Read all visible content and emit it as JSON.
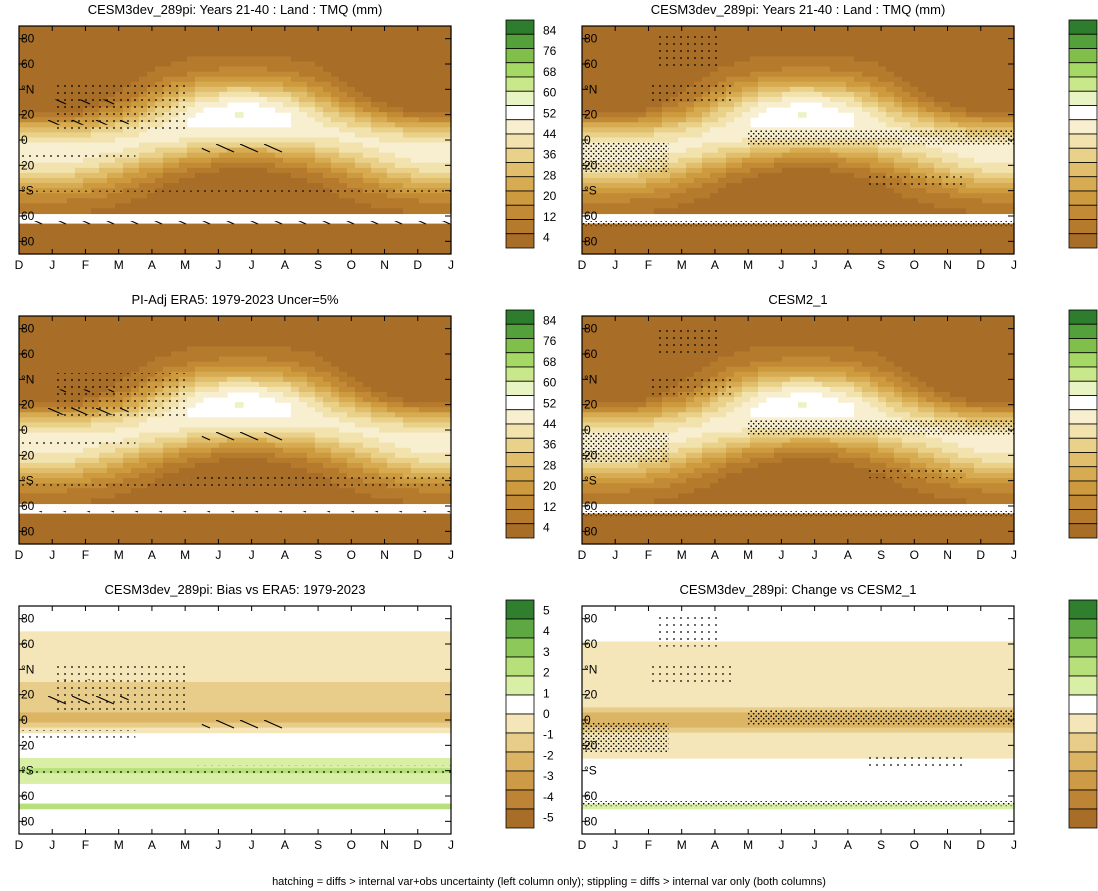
{
  "caption": "hatching = diffs > internal var+obs uncertainty (left column only); stippling = diffs > internal var only (both columns)",
  "months": [
    "D",
    "J",
    "F",
    "M",
    "A",
    "M",
    "J",
    "J",
    "A",
    "S",
    "O",
    "N",
    "D",
    "J"
  ],
  "lat_ticks": [
    "80",
    "60",
    "°N",
    "20",
    "0",
    "20",
    "°S",
    "60",
    "80"
  ],
  "colorbars": {
    "abs": [
      "84",
      "76",
      "68",
      "60",
      "52",
      "44",
      "36",
      "28",
      "20",
      "12",
      "4"
    ],
    "diff": [
      "5",
      "4",
      "3",
      "2",
      "1",
      "0",
      "-1",
      "-2",
      "-3",
      "-4",
      "-5"
    ]
  },
  "colors": {
    "abs_scale": [
      "#a86e28",
      "#b57a2c",
      "#c28a34",
      "#cd9a3e",
      "#d7ab52",
      "#e1be6c",
      "#ead18a",
      "#f2e2ad",
      "#f8efd0",
      "#ffffff",
      "#e9f4c4",
      "#c9e88c",
      "#a6d866",
      "#7fbf4a",
      "#54a03a",
      "#2e7d2e"
    ],
    "diff_scale": [
      "#a86e28",
      "#bd8436",
      "#cd9a48",
      "#dbb464",
      "#e8cd8a",
      "#f4e6b8",
      "#ffffff",
      "#d9efa6",
      "#b7e07a",
      "#8cc85a",
      "#5ea843",
      "#2f7f2e"
    ]
  },
  "chart_data": [
    {
      "type": "heatmap",
      "title": "CESM3dev_289pi: Years 21-40 : Land : TMQ (mm)",
      "ylim": [
        -90,
        90
      ],
      "x": [
        "D",
        "J",
        "F",
        "M",
        "A",
        "M",
        "J",
        "J",
        "A",
        "S",
        "O",
        "N",
        "D",
        "J"
      ],
      "scale": "abs",
      "range": [
        4,
        84
      ]
    },
    {
      "type": "heatmap",
      "title": "CESM3dev_289pi: Years 21-40 : Land : TMQ (mm)",
      "ylim": [
        -90,
        90
      ],
      "x": [
        "D",
        "J",
        "F",
        "M",
        "A",
        "M",
        "J",
        "J",
        "A",
        "S",
        "O",
        "N",
        "D",
        "J"
      ],
      "scale": "abs",
      "range": [
        4,
        84
      ]
    },
    {
      "type": "heatmap",
      "title": "PI-Adj ERA5: 1979-2023 Uncer=5%",
      "ylim": [
        -90,
        90
      ],
      "x": [
        "D",
        "J",
        "F",
        "M",
        "A",
        "M",
        "J",
        "J",
        "A",
        "S",
        "O",
        "N",
        "D",
        "J"
      ],
      "scale": "abs",
      "range": [
        4,
        84
      ]
    },
    {
      "type": "heatmap",
      "title": "CESM2_1",
      "ylim": [
        -90,
        90
      ],
      "x": [
        "D",
        "J",
        "F",
        "M",
        "A",
        "M",
        "J",
        "J",
        "A",
        "S",
        "O",
        "N",
        "D",
        "J"
      ],
      "scale": "abs",
      "range": [
        4,
        84
      ]
    },
    {
      "type": "heatmap",
      "title": "CESM3dev_289pi: Bias vs ERA5: 1979-2023",
      "ylim": [
        -90,
        90
      ],
      "x": [
        "D",
        "J",
        "F",
        "M",
        "A",
        "M",
        "J",
        "J",
        "A",
        "S",
        "O",
        "N",
        "D",
        "J"
      ],
      "scale": "diff",
      "range": [
        -5,
        5
      ]
    },
    {
      "type": "heatmap",
      "title": "CESM3dev_289pi: Change vs CESM2_1",
      "ylim": [
        -90,
        90
      ],
      "x": [
        "D",
        "J",
        "F",
        "M",
        "A",
        "M",
        "J",
        "J",
        "A",
        "S",
        "O",
        "N",
        "D",
        "J"
      ],
      "scale": "diff",
      "range": [
        -5,
        5
      ]
    }
  ]
}
